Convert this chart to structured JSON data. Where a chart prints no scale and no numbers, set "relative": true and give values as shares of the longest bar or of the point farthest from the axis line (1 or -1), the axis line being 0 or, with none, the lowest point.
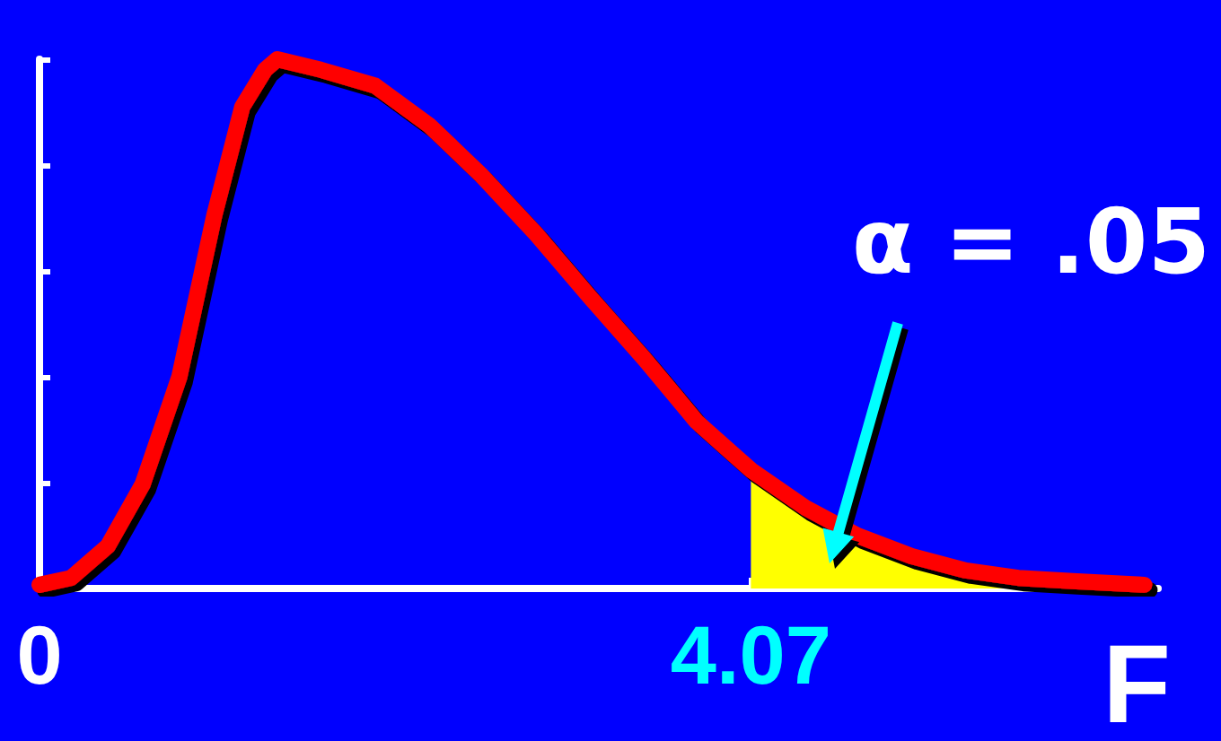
{
  "chart_data": {
    "type": "line",
    "relative": true,
    "xlabel": "F",
    "xlim": [
      0,
      6.4
    ],
    "xticks": [
      0,
      4.07
    ],
    "x": [
      0,
      0.18,
      0.39,
      0.59,
      0.8,
      1.0,
      1.16,
      1.29,
      1.36,
      1.61,
      1.92,
      2.23,
      2.53,
      2.84,
      3.15,
      3.46,
      3.76,
      4.07,
      4.38,
      4.68,
      4.99,
      5.3,
      5.6,
      5.91,
      6.32
    ],
    "series": [
      {
        "type": "area",
        "color": "#ffff00",
        "x": [
          4.07,
          4.38,
          4.68,
          4.99,
          5.3,
          5.6,
          5.91,
          6.32
        ],
        "values": [
          0.224,
          0.153,
          0.1,
          0.061,
          0.034,
          0.02,
          0.014,
          0.007
        ]
      },
      {
        "color": "#ff0000",
        "values": [
          0.007,
          0.02,
          0.08,
          0.197,
          0.4,
          0.705,
          0.91,
          0.98,
          1.0,
          0.98,
          0.95,
          0.875,
          0.78,
          0.67,
          0.55,
          0.434,
          0.315,
          0.224,
          0.153,
          0.1,
          0.061,
          0.034,
          0.02,
          0.014,
          0.007
        ]
      }
    ],
    "annotations": [
      "α = .05"
    ]
  }
}
